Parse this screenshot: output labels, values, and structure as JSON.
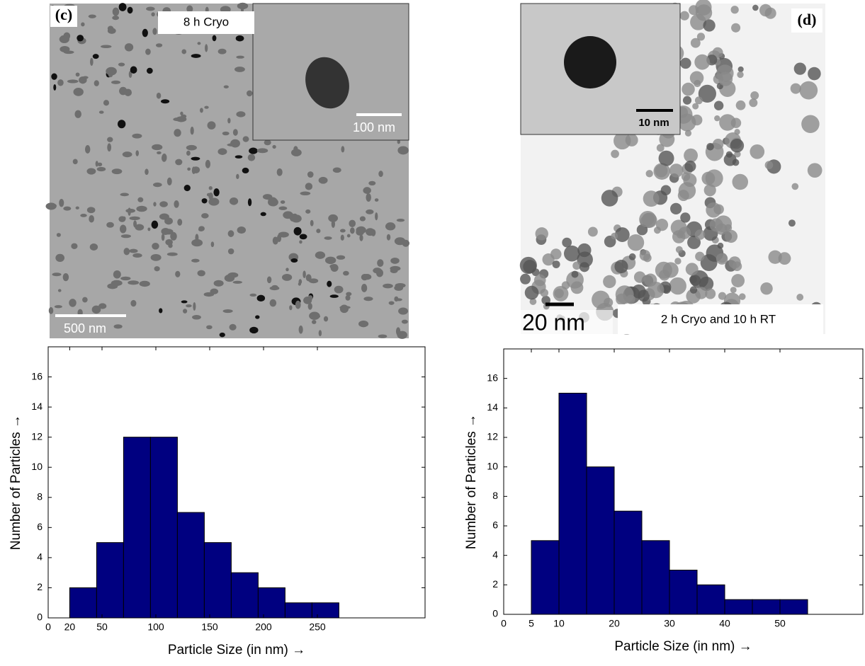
{
  "images": [
    {
      "label": "(c)",
      "caption": "8 h Cryo",
      "scale_bar": "500 nm",
      "inset_scale_bar": "100 nm"
    },
    {
      "label": "(d)",
      "caption": "2 h Cryo and 10 h RT",
      "scale_bar": "20 nm",
      "inset_scale_bar": "10 nm"
    }
  ],
  "chart_data": [
    {
      "type": "histogram",
      "xlabel": "Particle Size (in nm) →",
      "ylabel": "Number of Particles →",
      "bins": [
        20,
        45,
        70,
        95,
        120,
        145,
        170,
        195,
        220,
        245,
        270
      ],
      "values": [
        2,
        5,
        12,
        12,
        7,
        5,
        3,
        2,
        1,
        1
      ],
      "color": "#000080",
      "xlim": [
        0,
        350
      ],
      "xticks": [
        0,
        20,
        50,
        100,
        150,
        200,
        250
      ],
      "ylim": [
        0,
        18
      ],
      "yticks": [
        0,
        2,
        4,
        6,
        8,
        10,
        12,
        14,
        16
      ]
    },
    {
      "type": "histogram",
      "xlabel": "Particle Size (in nm) →",
      "ylabel": "Number of Particles →",
      "bins": [
        5,
        10,
        15,
        20,
        25,
        30,
        35,
        40,
        45,
        50,
        55
      ],
      "values": [
        5,
        15,
        10,
        7,
        5,
        3,
        2,
        1,
        1,
        1
      ],
      "color": "#000080",
      "xlim": [
        0,
        65
      ],
      "xticks": [
        0,
        5,
        10,
        20,
        30,
        40,
        50
      ],
      "ylim": [
        0,
        18
      ],
      "yticks": [
        0,
        2,
        4,
        6,
        8,
        10,
        12,
        14,
        16
      ]
    }
  ]
}
